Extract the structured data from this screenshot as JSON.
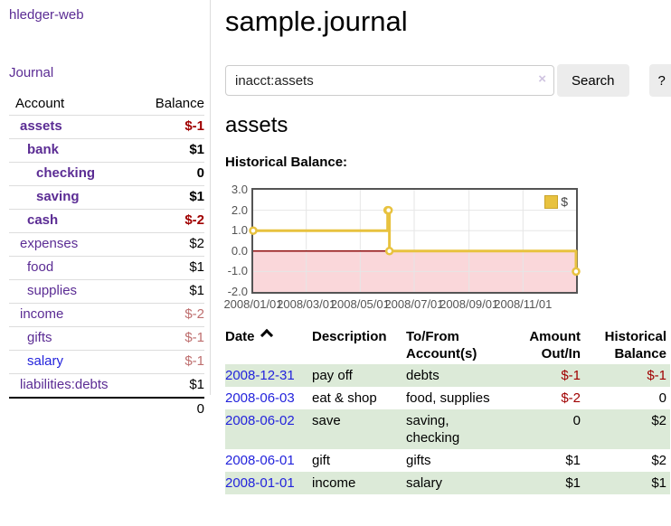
{
  "sidebar": {
    "app_title": "hledger-web",
    "nav": {
      "journal_label": "Journal"
    },
    "accounts_table": {
      "headers": {
        "account": "Account",
        "balance": "Balance"
      },
      "rows": [
        {
          "name": "assets",
          "level": 0,
          "bold": true,
          "name_color": "purple",
          "balance": "$-1",
          "balance_color": "red"
        },
        {
          "name": "bank",
          "level": 1,
          "bold": true,
          "name_color": "purple",
          "balance": "$1",
          "balance_color": "black"
        },
        {
          "name": "checking",
          "level": 2,
          "bold": true,
          "name_color": "purple",
          "balance": "0",
          "balance_color": "black"
        },
        {
          "name": "saving",
          "level": 2,
          "bold": true,
          "name_color": "purple",
          "balance": "$1",
          "balance_color": "black"
        },
        {
          "name": "cash",
          "level": 1,
          "bold": true,
          "name_color": "purple",
          "balance": "$-2",
          "balance_color": "red"
        },
        {
          "name": "expenses",
          "level": 0,
          "bold": false,
          "name_color": "purple",
          "balance": "$2",
          "balance_color": "black"
        },
        {
          "name": "food",
          "level": 1,
          "bold": false,
          "name_color": "purple",
          "balance": "$1",
          "balance_color": "black"
        },
        {
          "name": "supplies",
          "level": 1,
          "bold": false,
          "name_color": "purple",
          "balance": "$1",
          "balance_color": "black"
        },
        {
          "name": "income",
          "level": 0,
          "bold": false,
          "name_color": "purple",
          "balance": "$-2",
          "balance_color": "redsoft"
        },
        {
          "name": "gifts",
          "level": 1,
          "bold": false,
          "name_color": "purple",
          "balance": "$-1",
          "balance_color": "redsoft"
        },
        {
          "name": "salary",
          "level": 1,
          "bold": false,
          "name_color": "blue",
          "balance": "$-1",
          "balance_color": "redsoft"
        },
        {
          "name": "liabilities:debts",
          "level": 0,
          "bold": false,
          "name_color": "purple",
          "balance": "$1",
          "balance_color": "black"
        }
      ],
      "total": "0"
    }
  },
  "main": {
    "title": "sample.journal",
    "search": {
      "value": "inacct:assets",
      "clear_icon": "×",
      "button_label": "Search",
      "help_label": "?"
    },
    "account_heading": "assets",
    "chart_heading": "Historical Balance:"
  },
  "chart_data": {
    "type": "line",
    "style": "step",
    "title": "Historical Balance:",
    "legend": [
      {
        "label": "$",
        "color": "#E8C23F"
      }
    ],
    "legend_position": "top-right",
    "x": [
      "2008-01-01",
      "2008-06-01",
      "2008-06-02",
      "2008-06-03",
      "2008-12-31"
    ],
    "y": [
      1,
      2,
      2,
      0,
      -1
    ],
    "x_days": [
      0,
      152,
      153,
      154,
      365
    ],
    "xlim_days": [
      0,
      365
    ],
    "ylim": [
      -2,
      3
    ],
    "yticks": [
      {
        "label": "3.0",
        "value": 3
      },
      {
        "label": "2.0",
        "value": 2
      },
      {
        "label": "1.0",
        "value": 1
      },
      {
        "label": "0.0",
        "value": 0
      },
      {
        "label": "-1.0",
        "value": -1
      },
      {
        "label": "-2.0",
        "value": -2
      }
    ],
    "xticks": [
      {
        "label": "2008/01/01",
        "day": 0
      },
      {
        "label": "2008/03/01",
        "day": 60
      },
      {
        "label": "2008/05/01",
        "day": 121
      },
      {
        "label": "2008/07/01",
        "day": 182
      },
      {
        "label": "2008/09/01",
        "day": 244
      },
      {
        "label": "2008/11/01",
        "day": 305
      }
    ],
    "grid": true,
    "line_color": "#E8C23F",
    "marker": {
      "fill": "#ffffff",
      "stroke": "#E8C23F"
    },
    "grid_color": "#E6E6E6",
    "negative_region": {
      "fill": "#FAD7DA",
      "line_color": "#8F0E0E"
    }
  },
  "register": {
    "headers": {
      "date": "Date",
      "description": "Description",
      "tofrom": "To/From Account(s)",
      "amount": "Amount Out/In",
      "balance": "Historical Balance"
    },
    "rows": [
      {
        "date": "2008-12-31",
        "description": "pay off",
        "accounts": "debts",
        "amount": "$-1",
        "amount_color": "red",
        "balance": "$-1",
        "balance_color": "red"
      },
      {
        "date": "2008-06-03",
        "description": "eat & shop",
        "accounts": "food, supplies",
        "amount": "$-2",
        "amount_color": "red",
        "balance": "0",
        "balance_color": "black"
      },
      {
        "date": "2008-06-02",
        "description": "save",
        "accounts": "saving, checking",
        "amount": "0",
        "amount_color": "black",
        "balance": "$2",
        "balance_color": "black"
      },
      {
        "date": "2008-06-01",
        "description": "gift",
        "accounts": "gifts",
        "amount": "$1",
        "amount_color": "black",
        "balance": "$2",
        "balance_color": "black"
      },
      {
        "date": "2008-01-01",
        "description": "income",
        "accounts": "salary",
        "amount": "$1",
        "amount_color": "black",
        "balance": "$1",
        "balance_color": "black"
      }
    ]
  }
}
